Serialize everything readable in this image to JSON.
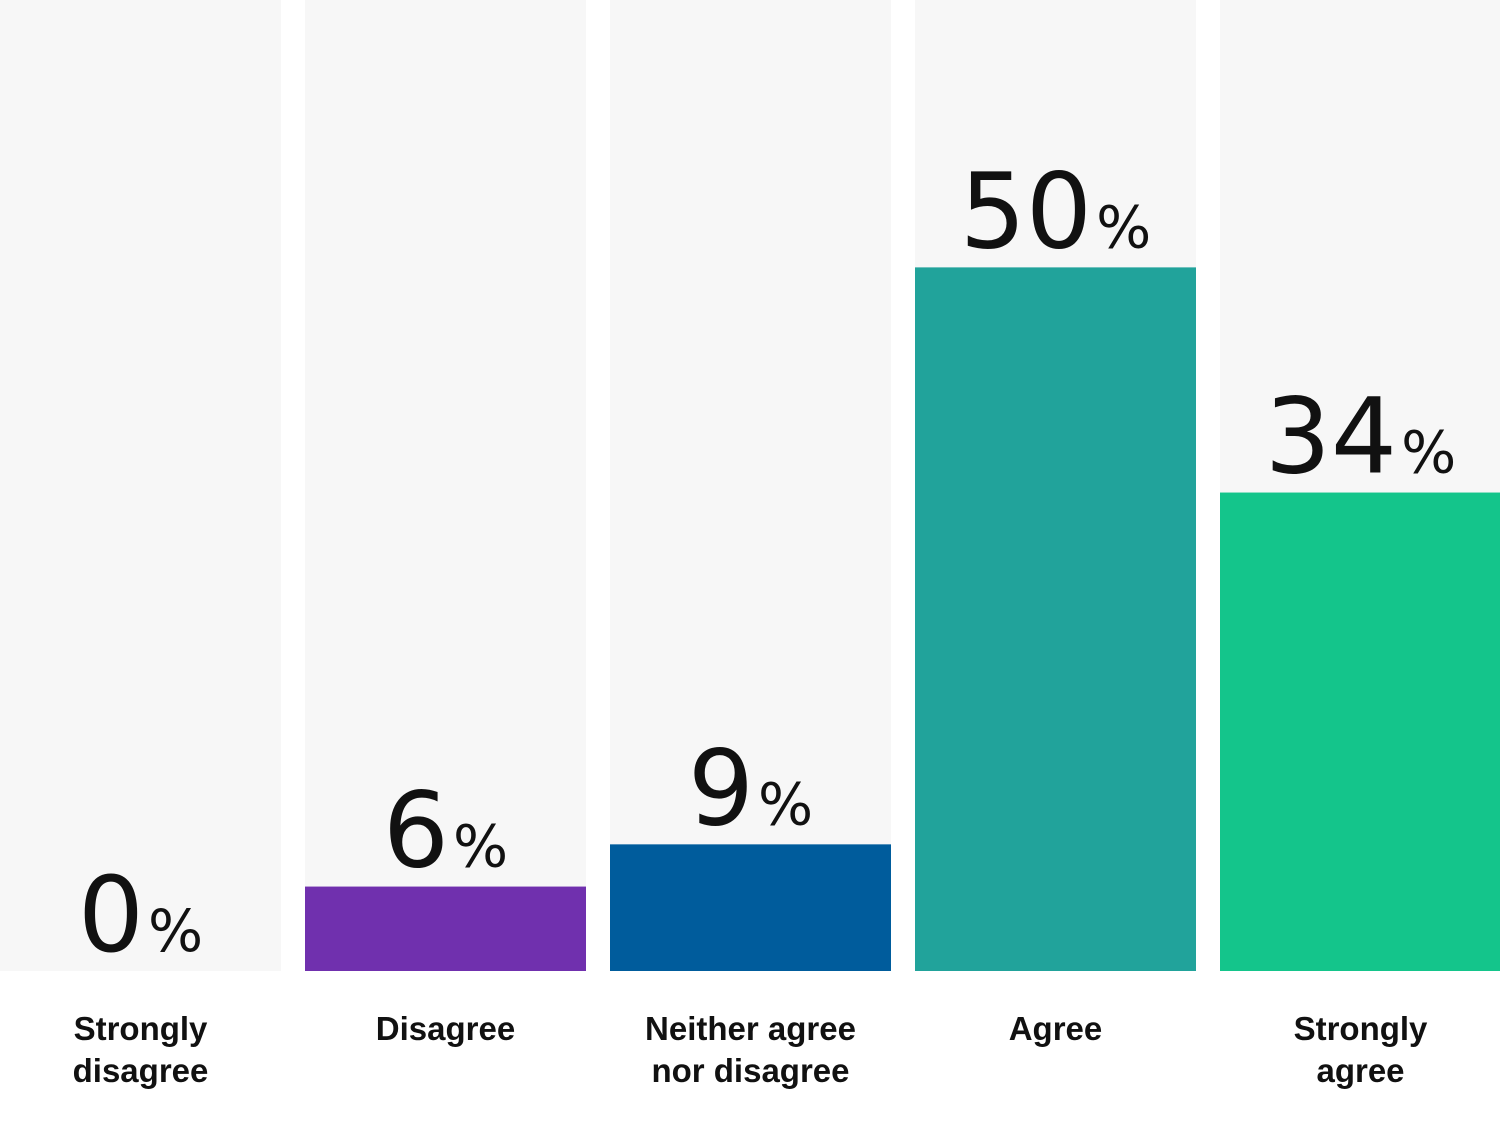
{
  "chart_data": {
    "type": "bar",
    "categories": [
      [
        "Strongly",
        "disagree"
      ],
      [
        "Disagree"
      ],
      [
        "Neither agree",
        "nor disagree"
      ],
      [
        "Agree"
      ],
      [
        "Strongly",
        "agree"
      ]
    ],
    "values": [
      0,
      6,
      9,
      50,
      34
    ],
    "value_suffix": "%",
    "ylim": [
      0,
      69
    ],
    "grid": false,
    "legend": "none",
    "colors": {
      "track": "#f7f7f7",
      "bars": [
        "#7030ae",
        "#7030ae",
        "#005c9c",
        "#21a39b",
        "#14c58b"
      ],
      "text": "#111111"
    }
  }
}
